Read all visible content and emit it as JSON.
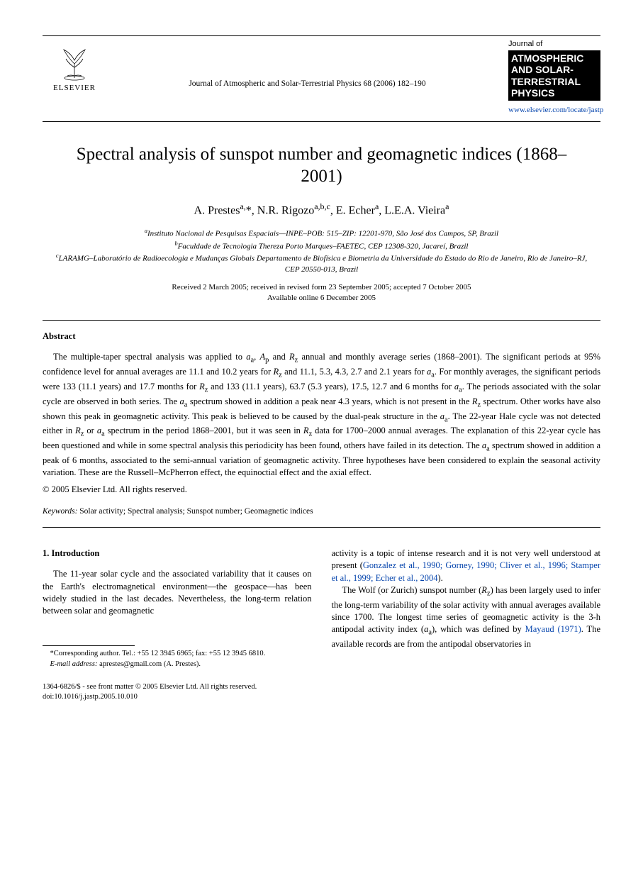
{
  "header": {
    "publisher": "ELSEVIER",
    "journal_ref": "Journal of Atmospheric and Solar-Terrestrial Physics 68 (2006) 182–190",
    "journal_name_small": "Journal of",
    "journal_name_big": "ATMOSPHERIC AND SOLAR-TERRESTRIAL PHYSICS",
    "journal_url": "www.elsevier.com/locate/jastp"
  },
  "title": "Spectral analysis of sunspot number and geomagnetic indices (1868–2001)",
  "authors_html": "A. Prestes<sup>a,</sup>*, N.R. Rigozo<sup>a,b,c</sup>, E. Echer<sup>a</sup>, L.E.A. Vieira<sup>a</sup>",
  "affiliations": {
    "a": "Instituto Nacional de Pesquisas Espaciais—INPE–POB: 515–ZIP: 12201-970, São José dos Campos, SP, Brazil",
    "b": "Faculdade de Tecnologia Thereza Porto Marques–FAETEC, CEP 12308-320, Jacareí, Brazil",
    "c": "LARAMG–Laboratório de Radioecologia e Mudanças Globais Departamento de Biofísica e Biometria da Universidade do Estado do Rio de Janeiro, Rio de Janeiro–RJ, CEP 20550-013, Brazil"
  },
  "dates": {
    "line1": "Received 2 March 2005; received in revised form 23 September 2005; accepted 7 October 2005",
    "line2": "Available online 6 December 2005"
  },
  "abstract": {
    "label": "Abstract",
    "body": "The multiple-taper spectral analysis was applied to aa, Ap and Rz annual and monthly average series (1868–2001). The significant periods at 95% confidence level for annual averages are 11.1 and 10.2 years for Rz and 11.1, 5.3, 4.3, 2.7 and 2.1 years for aa. For monthly averages, the significant periods were 133 (11.1 years) and 17.7 months for Rz and 133 (11.1 years), 63.7 (5.3 years), 17.5, 12.7 and 6 months for aa. The periods associated with the solar cycle are observed in both series. The aa spectrum showed in addition a peak near 4.3 years, which is not present in the Rz spectrum. Other works have also shown this peak in geomagnetic activity. This peak is believed to be caused by the dual-peak structure in the aa. The 22-year Hale cycle was not detected either in Rz or aa spectrum in the period 1868–2001, but it was seen in Rz data for 1700–2000 annual averages. The explanation of this 22-year cycle has been questioned and while in some spectral analysis this periodicity has been found, others have failed in its detection. The aa spectrum showed in addition a peak of 6 months, associated to the semi-annual variation of geomagnetic activity. Three hypotheses have been considered to explain the seasonal activity variation. These are the Russell–McPherron effect, the equinoctial effect and the axial effect.",
    "copyright": "© 2005 Elsevier Ltd. All rights reserved."
  },
  "keywords": {
    "label": "Keywords:",
    "text": " Solar activity; Spectral analysis; Sunspot number; Geomagnetic indices"
  },
  "section1": {
    "heading": "1. Introduction",
    "col1_p1": "The 11-year solar cycle and the associated variability that it causes on the Earth's electromagnetical environment—the geospace—has been widely studied in the last decades. Nevertheless, the long-term relation between solar and geomagnetic",
    "col2_p1_pre": "activity is a topic of intense research and it is not very well understood at present (",
    "col2_refs": "Gonzalez et al., 1990; Gorney, 1990; Cliver et al., 1996; Stamper et al., 1999; Echer et al., 2004",
    "col2_p1_post": ").",
    "col2_p2_pre": "The Wolf (or Zurich) sunspot number (Rz) has been largely used to infer the long-term variability of the solar activity with annual averages available since 1700. The longest time series of geomagnetic activity is the 3-h antipodal activity index (aa), which was defined by ",
    "col2_ref2": "Mayaud (1971)",
    "col2_p2_post": ". The available records are from the antipodal observatories in"
  },
  "footnotes": {
    "corr": "*Corresponding author. Tel.: +55 12 3945 6965; fax: +55 12 3945 6810.",
    "email_label": "E-mail address:",
    "email": " aprestes@gmail.com (A. Prestes)."
  },
  "footer": {
    "line1": "1364-6826/$ - see front matter © 2005 Elsevier Ltd. All rights reserved.",
    "line2": "doi:10.1016/j.jastp.2005.10.010"
  },
  "colors": {
    "link": "#0645ad",
    "text": "#000000",
    "bg": "#ffffff"
  }
}
